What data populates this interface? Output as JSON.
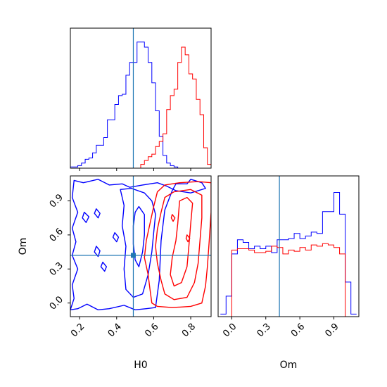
{
  "colors": {
    "blue": "#0000ff",
    "red": "#ff0000",
    "truth": "#1f77b4",
    "frame": "#000000"
  },
  "chart_data": {
    "type": "corner",
    "parameters": [
      "H0",
      "Om"
    ],
    "truths": {
      "H0": 0.49,
      "Om": 0.42
    },
    "axes": {
      "H0": {
        "label": "H0",
        "range": [
          0.15,
          0.91
        ],
        "ticks": [
          "0.2",
          "0.4",
          "0.6",
          "0.8"
        ],
        "tick_values": [
          0.2,
          0.4,
          0.6,
          0.8
        ]
      },
      "Om": {
        "label": "Om",
        "range": [
          -0.12,
          1.12
        ],
        "ticks": [
          "0.0",
          "0.3",
          "0.6",
          "0.9"
        ],
        "tick_values": [
          0.0,
          0.3,
          0.6,
          0.9
        ]
      }
    },
    "histograms": {
      "H0": {
        "bin_edges": [
          0.15,
          0.17,
          0.19,
          0.21,
          0.23,
          0.25,
          0.27,
          0.29,
          0.31,
          0.33,
          0.35,
          0.37,
          0.39,
          0.41,
          0.43,
          0.45,
          0.47,
          0.49,
          0.51,
          0.53,
          0.55,
          0.57,
          0.59,
          0.61,
          0.63,
          0.65,
          0.67,
          0.69,
          0.71,
          0.73,
          0.75,
          0.77,
          0.79,
          0.81,
          0.83,
          0.85,
          0.87,
          0.89,
          0.91
        ],
        "series": [
          {
            "color": "blue",
            "values": [
              0.01,
              0.01,
              0.02,
              0.04,
              0.07,
              0.08,
              0.12,
              0.18,
              0.18,
              0.24,
              0.38,
              0.38,
              0.5,
              0.57,
              0.58,
              0.73,
              0.83,
              0.83,
              0.99,
              0.99,
              0.95,
              0.83,
              0.67,
              0.45,
              0.25,
              0.1,
              0.04,
              0.02,
              0.01,
              0.0,
              0.0,
              0.0,
              0.0,
              0.0,
              0.0,
              0.0,
              0.0,
              0.0
            ]
          },
          {
            "color": "red",
            "values": [
              0.0,
              0.0,
              0.0,
              0.0,
              0.0,
              0.0,
              0.0,
              0.0,
              0.0,
              0.0,
              0.0,
              0.0,
              0.0,
              0.0,
              0.0,
              0.0,
              0.0,
              0.0,
              0.0,
              0.03,
              0.06,
              0.09,
              0.11,
              0.17,
              0.21,
              0.27,
              0.46,
              0.57,
              0.62,
              0.83,
              0.95,
              0.89,
              0.74,
              0.7,
              0.54,
              0.42,
              0.16,
              0.03
            ]
          }
        ]
      },
      "Om": {
        "bin_edges": [
          -0.1,
          -0.05,
          0.0,
          0.05,
          0.1,
          0.15,
          0.2,
          0.25,
          0.3,
          0.35,
          0.4,
          0.45,
          0.5,
          0.55,
          0.6,
          0.65,
          0.7,
          0.75,
          0.8,
          0.85,
          0.9,
          0.95,
          1.0,
          1.05,
          1.1
        ],
        "series": [
          {
            "color": "blue",
            "values": [
              0.02,
              0.16,
              0.49,
              0.6,
              0.58,
              0.53,
              0.55,
              0.53,
              0.55,
              0.5,
              0.6,
              0.6,
              0.61,
              0.65,
              0.61,
              0.63,
              0.66,
              0.65,
              0.82,
              0.82,
              0.97,
              0.8,
              0.27,
              0.02
            ]
          },
          {
            "color": "red",
            "values": [
              0.0,
              0.0,
              0.52,
              0.53,
              0.53,
              0.52,
              0.5,
              0.5,
              0.51,
              0.55,
              0.54,
              0.49,
              0.52,
              0.51,
              0.54,
              0.52,
              0.56,
              0.55,
              0.57,
              0.56,
              0.54,
              0.49,
              0.0,
              0.0
            ]
          }
        ]
      }
    },
    "contours_2d": {
      "x": "H0",
      "y": "Om",
      "series": [
        {
          "color": "blue",
          "levels": [
            [
              [
                0.17,
                1.08
              ],
              [
                0.22,
                1.06
              ],
              [
                0.3,
                1.09
              ],
              [
                0.36,
                1.04
              ],
              [
                0.43,
                1.05
              ],
              [
                0.47,
                1.02
              ],
              [
                0.54,
                1.04
              ],
              [
                0.62,
                1.06
              ],
              [
                0.67,
                1.03
              ],
              [
                0.72,
                0.99
              ],
              [
                0.8,
                0.97
              ],
              [
                0.88,
                1.01
              ],
              [
                0.86,
                1.06
              ],
              [
                0.8,
                1.09
              ],
              [
                0.78,
                1.05
              ],
              [
                0.72,
                1.05
              ],
              [
                0.7,
                0.99
              ],
              [
                0.66,
                0.82
              ],
              [
                0.64,
                0.55
              ],
              [
                0.63,
                0.2
              ],
              [
                0.61,
                -0.04
              ],
              [
                0.56,
                -0.05
              ],
              [
                0.5,
                -0.06
              ],
              [
                0.44,
                -0.02
              ],
              [
                0.36,
                -0.05
              ],
              [
                0.3,
                -0.06
              ],
              [
                0.24,
                -0.01
              ],
              [
                0.19,
                -0.05
              ],
              [
                0.15,
                -0.06
              ],
              [
                0.17,
                0.04
              ],
              [
                0.16,
                0.16
              ],
              [
                0.19,
                0.3
              ],
              [
                0.16,
                0.42
              ],
              [
                0.18,
                0.54
              ],
              [
                0.16,
                0.66
              ],
              [
                0.19,
                0.8
              ],
              [
                0.16,
                0.93
              ],
              [
                0.17,
                1.08
              ]
            ],
            [
              [
                0.42,
                1.0
              ],
              [
                0.48,
                1.01
              ],
              [
                0.55,
                0.97
              ],
              [
                0.59,
                0.9
              ],
              [
                0.61,
                0.78
              ],
              [
                0.6,
                0.62
              ],
              [
                0.59,
                0.45
              ],
              [
                0.57,
                0.25
              ],
              [
                0.54,
                0.08
              ],
              [
                0.49,
                0.05
              ],
              [
                0.45,
                0.12
              ],
              [
                0.44,
                0.3
              ],
              [
                0.45,
                0.5
              ],
              [
                0.43,
                0.68
              ],
              [
                0.44,
                0.86
              ],
              [
                0.42,
                1.0
              ]
            ],
            [
              [
                0.52,
                0.85
              ],
              [
                0.55,
                0.78
              ],
              [
                0.55,
                0.6
              ],
              [
                0.54,
                0.45
              ],
              [
                0.52,
                0.32
              ],
              [
                0.5,
                0.38
              ],
              [
                0.49,
                0.52
              ],
              [
                0.49,
                0.68
              ],
              [
                0.5,
                0.8
              ],
              [
                0.52,
                0.85
              ]
            ],
            [
              [
                0.225,
                0.8
              ],
              [
                0.25,
                0.76
              ],
              [
                0.235,
                0.71
              ],
              [
                0.215,
                0.75
              ],
              [
                0.225,
                0.8
              ]
            ],
            [
              [
                0.29,
                0.5
              ],
              [
                0.31,
                0.46
              ],
              [
                0.3,
                0.41
              ],
              [
                0.28,
                0.45
              ],
              [
                0.29,
                0.5
              ]
            ],
            [
              [
                0.325,
                0.36
              ],
              [
                0.345,
                0.32
              ],
              [
                0.335,
                0.28
              ],
              [
                0.315,
                0.32
              ],
              [
                0.325,
                0.36
              ]
            ],
            [
              [
                0.39,
                0.62
              ],
              [
                0.41,
                0.58
              ],
              [
                0.4,
                0.54
              ],
              [
                0.38,
                0.58
              ],
              [
                0.39,
                0.62
              ]
            ],
            [
              [
                0.29,
                0.83
              ],
              [
                0.31,
                0.79
              ],
              [
                0.3,
                0.75
              ],
              [
                0.28,
                0.79
              ],
              [
                0.29,
                0.83
              ]
            ]
          ]
        },
        {
          "color": "red",
          "levels": [
            [
              [
                0.62,
                0.98
              ],
              [
                0.66,
                1.04
              ],
              [
                0.74,
                1.06
              ],
              [
                0.84,
                1.07
              ],
              [
                0.91,
                1.06
              ],
              [
                0.91,
                0.8
              ],
              [
                0.9,
                0.55
              ],
              [
                0.89,
                0.32
              ],
              [
                0.88,
                0.15
              ],
              [
                0.86,
                0.0
              ],
              [
                0.8,
                -0.03
              ],
              [
                0.7,
                -0.04
              ],
              [
                0.62,
                -0.03
              ],
              [
                0.59,
                0.0
              ],
              [
                0.58,
                0.12
              ],
              [
                0.57,
                0.25
              ],
              [
                0.55,
                0.4
              ],
              [
                0.56,
                0.55
              ],
              [
                0.58,
                0.7
              ],
              [
                0.6,
                0.85
              ],
              [
                0.62,
                0.98
              ]
            ],
            [
              [
                0.66,
                0.93
              ],
              [
                0.71,
                0.98
              ],
              [
                0.8,
                1.0
              ],
              [
                0.86,
                0.95
              ],
              [
                0.86,
                0.75
              ],
              [
                0.85,
                0.55
              ],
              [
                0.84,
                0.35
              ],
              [
                0.82,
                0.18
              ],
              [
                0.78,
                0.05
              ],
              [
                0.71,
                0.03
              ],
              [
                0.66,
                0.08
              ],
              [
                0.64,
                0.2
              ],
              [
                0.62,
                0.35
              ],
              [
                0.61,
                0.5
              ],
              [
                0.62,
                0.65
              ],
              [
                0.64,
                0.8
              ],
              [
                0.66,
                0.93
              ]
            ],
            [
              [
                0.74,
                0.9
              ],
              [
                0.78,
                0.93
              ],
              [
                0.81,
                0.88
              ],
              [
                0.8,
                0.7
              ],
              [
                0.79,
                0.5
              ],
              [
                0.78,
                0.32
              ],
              [
                0.75,
                0.18
              ],
              [
                0.71,
                0.15
              ],
              [
                0.69,
                0.25
              ],
              [
                0.7,
                0.4
              ],
              [
                0.72,
                0.55
              ],
              [
                0.73,
                0.7
              ],
              [
                0.74,
                0.9
              ]
            ],
            [
              [
                0.7,
                0.78
              ],
              [
                0.715,
                0.75
              ],
              [
                0.705,
                0.72
              ],
              [
                0.695,
                0.75
              ],
              [
                0.7,
                0.78
              ]
            ],
            [
              [
                0.78,
                0.6
              ],
              [
                0.795,
                0.57
              ],
              [
                0.785,
                0.54
              ],
              [
                0.775,
                0.57
              ],
              [
                0.78,
                0.6
              ]
            ]
          ]
        }
      ]
    }
  }
}
